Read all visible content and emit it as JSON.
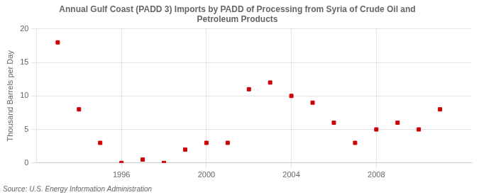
{
  "chart_data": {
    "type": "scatter",
    "title": "Annual Gulf Coast (PADD 3) Imports by PADD of Processing from Syria of Crude Oil and\nPetroleum Products",
    "ylabel": "Thousand Barrels per Day",
    "annotations": [
      "Source: U.S. Energy Information Administration"
    ],
    "x": [
      1993,
      1994,
      1995,
      1996,
      1997,
      1998,
      1999,
      2000,
      2001,
      2002,
      2003,
      2004,
      2005,
      2006,
      2007,
      2008,
      2009,
      2010,
      2011
    ],
    "values": [
      18,
      8,
      3,
      0,
      0.5,
      0,
      2,
      3,
      3,
      11,
      12,
      10,
      9,
      6,
      3,
      5,
      6,
      5,
      8
    ],
    "color": "#cc0000",
    "marker": "square",
    "xlim": [
      1992.0,
      2012.5
    ],
    "ylim": [
      0,
      20
    ],
    "xticks": [
      1996,
      2000,
      2004,
      2008
    ],
    "yticks": [
      0,
      5,
      10,
      15,
      20
    ],
    "grid": true
  }
}
